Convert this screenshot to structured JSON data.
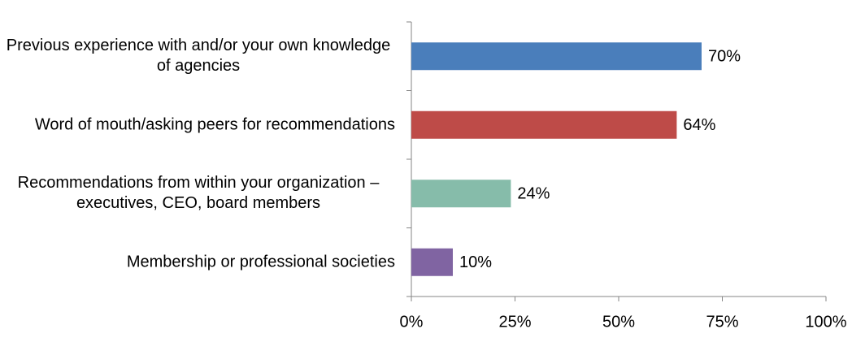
{
  "chart_data": {
    "type": "hbar",
    "categories": [
      "Previous experience with and/or your own knowledge of agencies",
      "Word of mouth/asking peers for recommendations",
      "Recommendations from within your organization – executives, CEO, board members",
      "Membership or professional societies"
    ],
    "values": [
      70,
      64,
      24,
      10
    ],
    "value_labels": [
      "70%",
      "64%",
      "24%",
      "10%"
    ],
    "colors": [
      "#4a7ebb",
      "#be4b48",
      "#86bcaa",
      "#8064a2"
    ],
    "xlim": [
      0,
      100
    ],
    "xticks": [
      {
        "value": 0,
        "label": "0%"
      },
      {
        "value": 25,
        "label": "25%"
      },
      {
        "value": 50,
        "label": "50%"
      },
      {
        "value": 75,
        "label": "75%"
      },
      {
        "value": 100,
        "label": "100%"
      }
    ],
    "grid": false
  }
}
